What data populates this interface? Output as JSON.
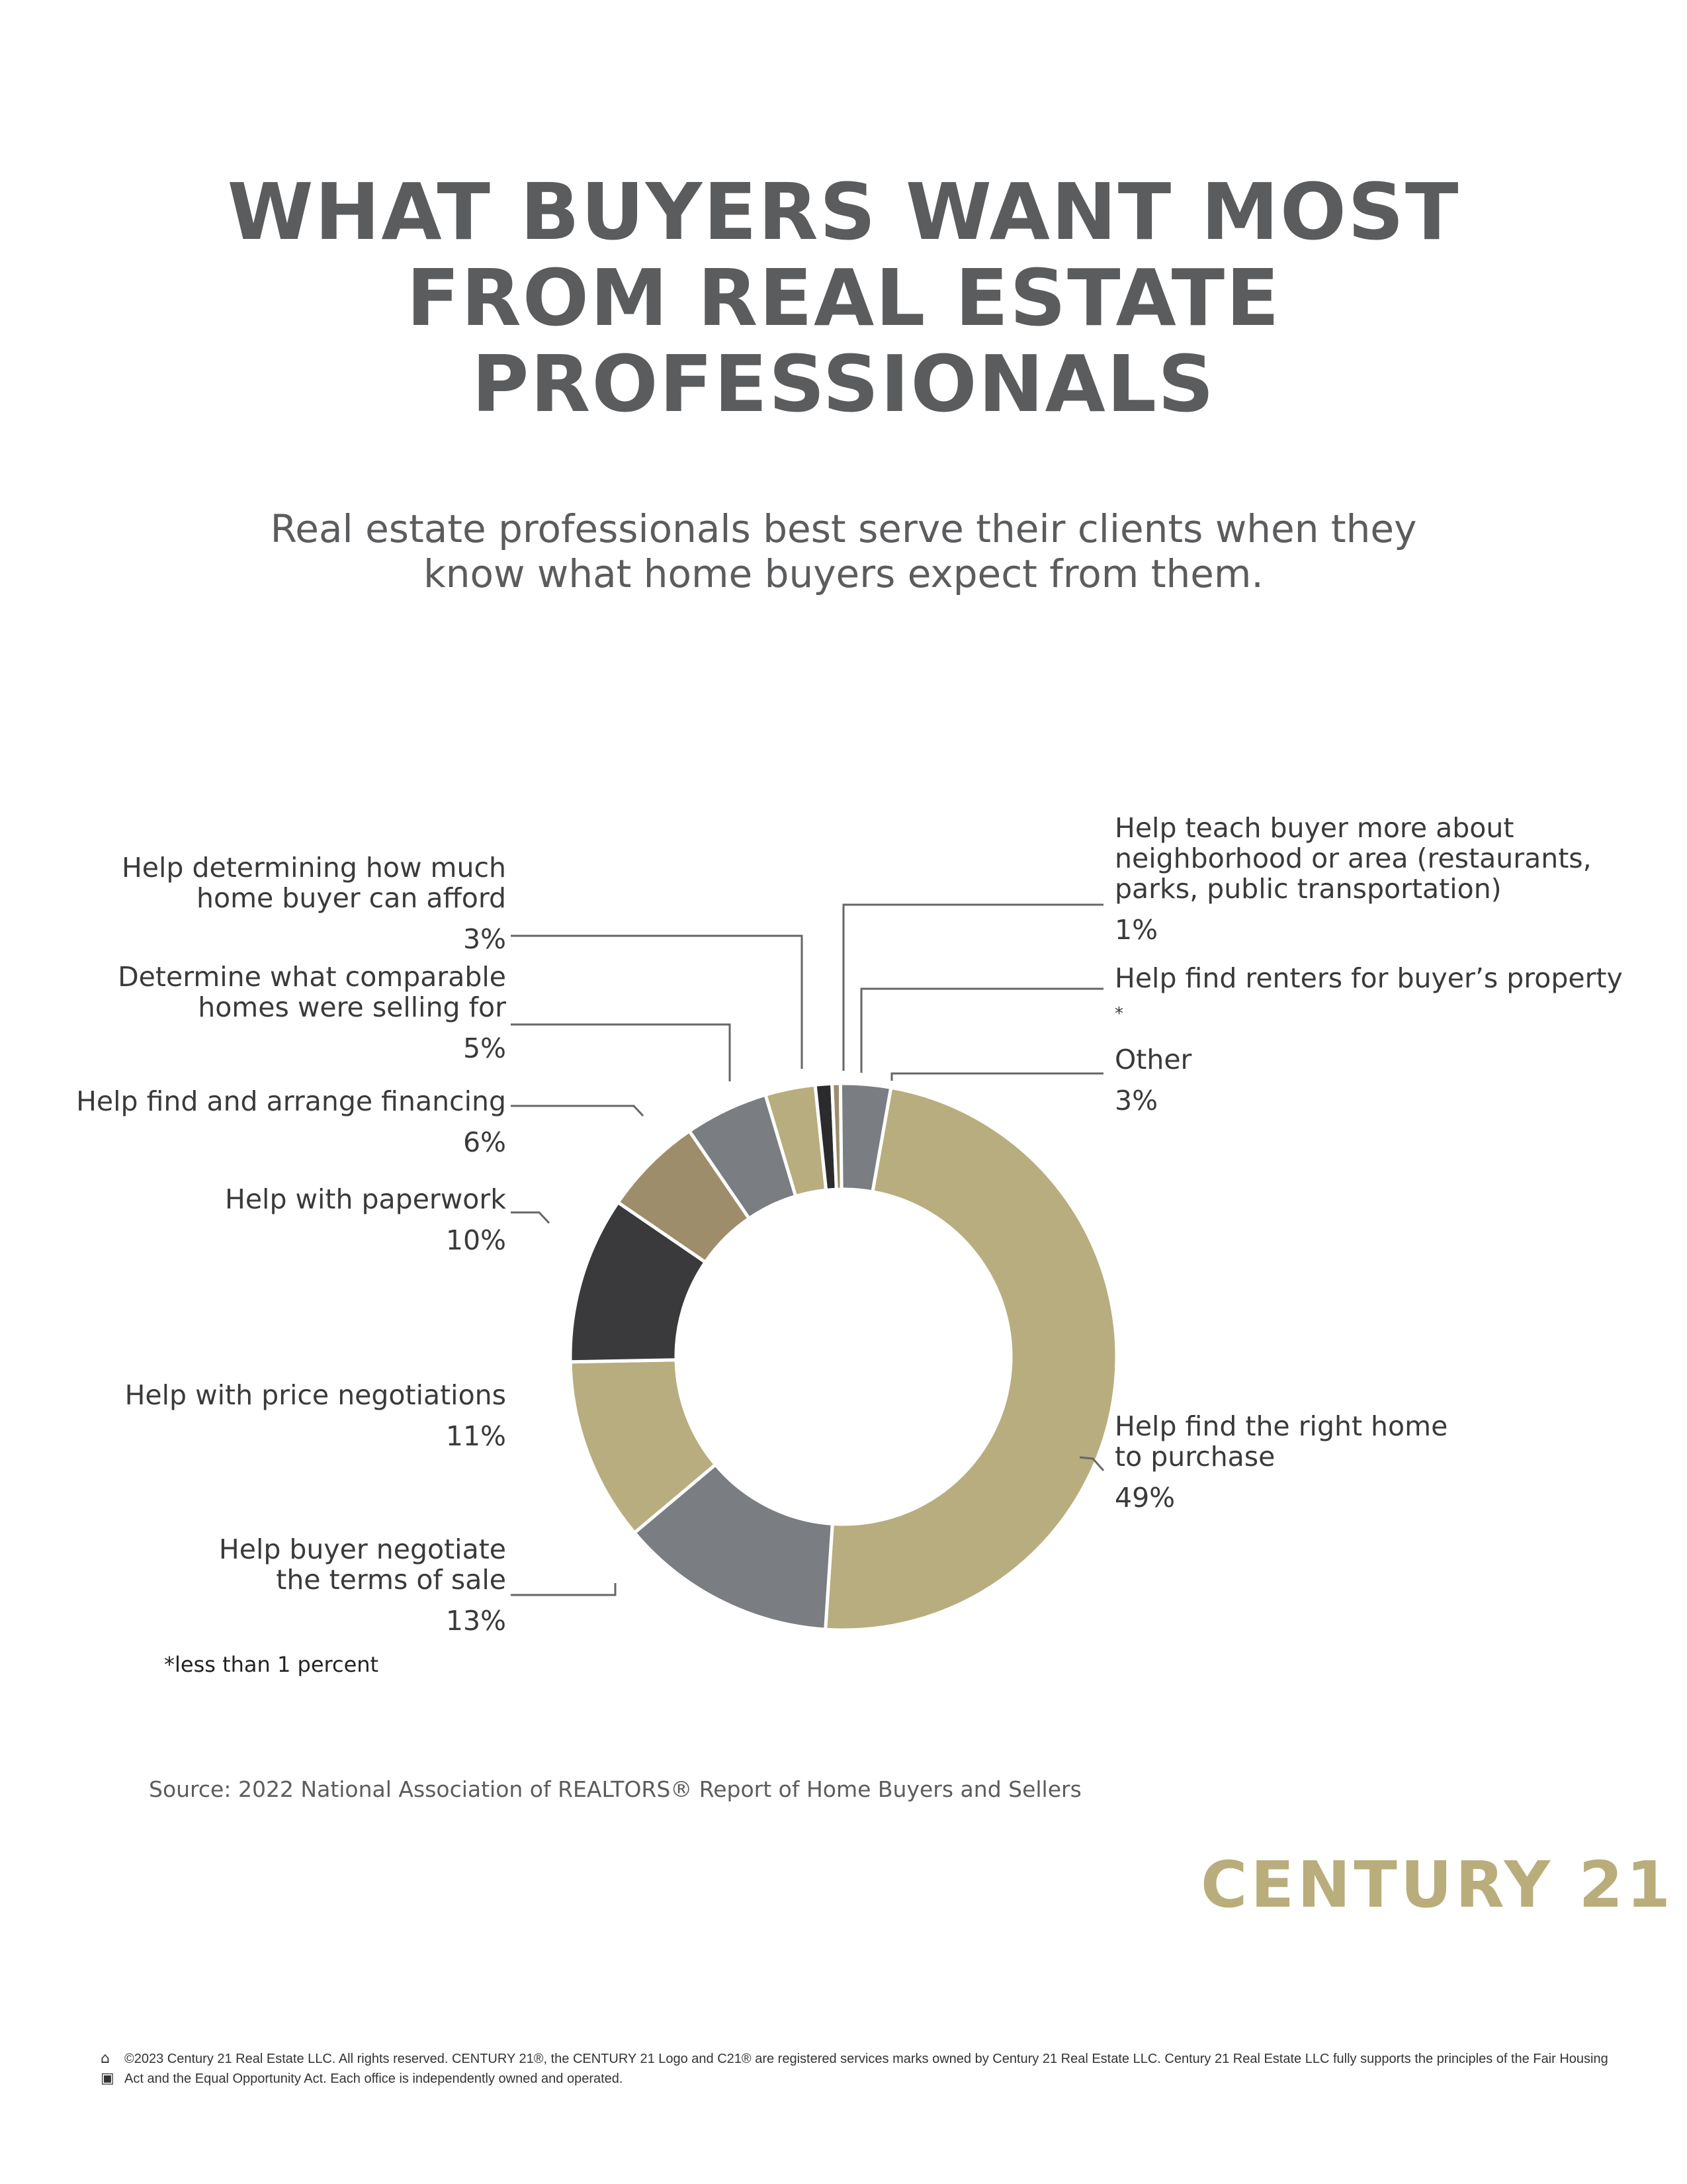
{
  "header": {
    "title_lines": [
      "WHAT BUYERS WANT MOST",
      "FROM REAL ESTATE",
      "PROFESSIONALS"
    ],
    "subtitle_lines": [
      "Real estate professionals best serve their clients when they",
      "know what home buyers expect from them."
    ]
  },
  "chart_data": {
    "type": "pie",
    "variant": "donut",
    "title": "WHAT BUYERS WANT MOST FROM REAL ESTATE PROFESSIONALS",
    "slices": [
      {
        "label_lines": [
          "Help find the right home",
          "to purchase"
        ],
        "value": 49,
        "value_label": "49%",
        "color": "#b8ad7e"
      },
      {
        "label_lines": [
          "Help buyer negotiate",
          "the terms of sale"
        ],
        "value": 13,
        "value_label": "13%",
        "color": "#7a7d81"
      },
      {
        "label_lines": [
          "Help with price negotiations"
        ],
        "value": 11,
        "value_label": "11%",
        "color": "#b8ad7e"
      },
      {
        "label_lines": [
          "Help with paperwork"
        ],
        "value": 10,
        "value_label": "10%",
        "color": "#3a3a3c"
      },
      {
        "label_lines": [
          "Help find and arrange financing"
        ],
        "value": 6,
        "value_label": "6%",
        "color": "#9d8d6b"
      },
      {
        "label_lines": [
          "Determine what comparable",
          "homes were selling for"
        ],
        "value": 5,
        "value_label": "5%",
        "color": "#7a7d81"
      },
      {
        "label_lines": [
          "Help determining how much",
          "home buyer can afford"
        ],
        "value": 3,
        "value_label": "3%",
        "color": "#b8ad7e"
      },
      {
        "label_lines": [
          "Help teach buyer more about",
          "neighborhood or area (restaurants,",
          "parks, public transportation)"
        ],
        "value": 1,
        "value_label": "1%",
        "color": "#2b2b2d"
      },
      {
        "label_lines": [
          "Help find renters for buyer’s property"
        ],
        "value": 0.5,
        "value_label": "*",
        "color": "#9d8d6b"
      },
      {
        "label_lines": [
          "Other"
        ],
        "value": 3,
        "value_label": "3%",
        "color": "#7a7d81"
      }
    ],
    "legend": "none"
  },
  "footnote": "*less than 1 percent",
  "source": "Source: 2022 National Association of REALTORS® Report of Home Buyers and Sellers",
  "logo": "CENTURY 21",
  "legal": "©2023 Century 21 Real Estate LLC. All rights reserved. CENTURY 21®, the CENTURY 21 Logo and C21® are registered services marks owned by Century 21 Real Estate LLC. Century 21 Real Estate LLC fully supports the principles of the Fair Housing Act and the Equal Opportunity Act. Each office is independently owned and operated.",
  "icons": [
    "equal-housing-icon",
    "realtor-icon"
  ]
}
